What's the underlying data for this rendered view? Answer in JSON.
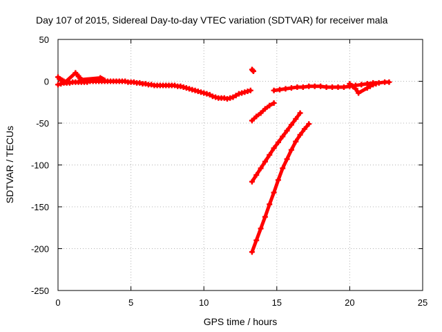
{
  "chart_data": {
    "type": "scatter",
    "title": "Day 107 of 2015, Sidereal Day-to-day VTEC variation (SDTVAR) for receiver mala",
    "xlabel": "GPS time / hours",
    "ylabel": "SDTVAR / TECUs",
    "xlim": [
      0,
      25
    ],
    "ylim": [
      -250,
      50
    ],
    "xticks": [
      0,
      5,
      10,
      15,
      20,
      25
    ],
    "yticks": [
      -250,
      -200,
      -150,
      -100,
      -50,
      0,
      50
    ],
    "grid": true,
    "marker": "+",
    "color": "#ff0000",
    "series": [
      {
        "x": [
          0.0,
          0.2,
          0.4,
          0.6,
          0.8,
          1.0,
          1.2,
          1.4,
          1.6,
          1.8,
          2.0,
          2.2,
          2.4,
          2.6,
          2.8,
          3.0,
          3.2,
          3.4,
          3.6,
          3.8,
          4.0,
          4.2,
          4.4,
          4.6,
          4.8,
          5.0,
          5.2,
          5.4,
          5.6,
          5.8,
          6.0,
          6.2,
          6.4,
          6.6,
          6.8,
          7.0,
          7.2,
          7.4,
          7.6,
          7.8,
          8.0,
          8.2,
          8.4,
          8.6,
          8.8,
          9.0,
          9.2,
          9.4,
          9.6,
          9.8,
          10.0,
          10.2,
          10.4,
          10.6,
          10.8,
          11.0,
          11.2,
          11.4,
          11.6,
          11.8,
          12.0,
          12.2,
          12.4,
          12.6,
          12.8,
          13.0,
          13.2,
          0.0,
          0.1,
          0.2,
          0.3,
          0.4,
          0.5,
          1.2,
          1.3,
          1.4,
          1.5,
          1.6,
          2.9,
          3.0,
          3.1,
          3.2
        ],
        "y": [
          -4,
          -3,
          -2,
          -2,
          -2,
          -1,
          -1,
          -1,
          -1,
          -1,
          -1,
          0,
          0,
          0,
          0,
          0,
          0,
          0,
          0,
          0,
          0,
          0,
          0,
          0,
          -1,
          -1,
          -1,
          -2,
          -2,
          -3,
          -3,
          -4,
          -4,
          -5,
          -5,
          -5,
          -5,
          -5,
          -5,
          -5,
          -5,
          -6,
          -6,
          -7,
          -8,
          -9,
          -10,
          -11,
          -12,
          -13,
          -14,
          -15,
          -16,
          -18,
          -19,
          -20,
          -20,
          -20,
          -21,
          -20,
          -19,
          -17,
          -15,
          -14,
          -13,
          -12,
          -11,
          5,
          3,
          2,
          1,
          0,
          -1,
          10,
          8,
          6,
          4,
          2,
          4,
          3,
          2,
          1
        ]
      },
      {
        "x": [
          13.3,
          13.35,
          13.4
        ],
        "y": [
          14,
          13,
          12
        ]
      },
      {
        "x": [
          13.3,
          13.6,
          13.9,
          14.2,
          14.5,
          14.8
        ],
        "y": [
          -47,
          -42,
          -38,
          -33,
          -29,
          -26
        ]
      },
      {
        "x": [
          14.8,
          15.2,
          15.6,
          16.0,
          16.4,
          16.8,
          17.2,
          17.6,
          18.0,
          18.4,
          18.8,
          19.2,
          19.6,
          20.0,
          20.4,
          20.8,
          21.2,
          21.6,
          22.0,
          22.4,
          22.7,
          20.0,
          20.2,
          20.4,
          20.6,
          21.2,
          21.4,
          21.6,
          21.8
        ],
        "y": [
          -11,
          -10,
          -9,
          -8,
          -7,
          -7,
          -6,
          -6,
          -6,
          -7,
          -7,
          -7,
          -7,
          -6,
          -5,
          -4,
          -3,
          -2,
          -2,
          -1,
          -1,
          -3,
          -6,
          -9,
          -14,
          -8,
          -6,
          -4,
          -3
        ]
      },
      {
        "x": [
          13.3,
          13.6,
          13.9,
          14.2,
          14.5,
          14.8,
          15.1,
          15.4,
          15.7,
          16.0,
          16.3,
          16.6
        ],
        "y": [
          -120,
          -112,
          -104,
          -96,
          -88,
          -80,
          -73,
          -66,
          -59,
          -52,
          -45,
          -38
        ]
      },
      {
        "x": [
          13.3,
          13.6,
          13.9,
          14.2,
          14.5,
          14.8,
          15.1,
          15.4,
          15.7,
          16.0,
          16.3,
          16.6,
          16.9,
          17.2
        ],
        "y": [
          -204,
          -190,
          -176,
          -162,
          -147,
          -133,
          -118,
          -104,
          -93,
          -82,
          -72,
          -64,
          -57,
          -51
        ]
      }
    ]
  }
}
